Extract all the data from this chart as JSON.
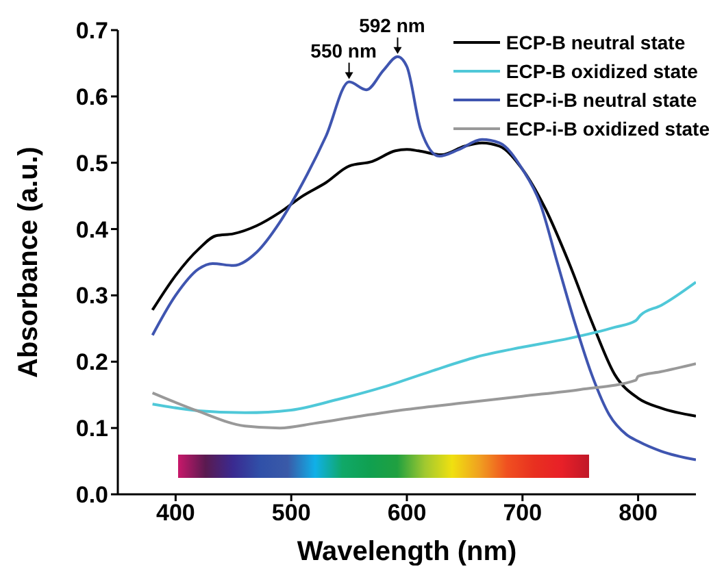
{
  "chart_data": {
    "type": "line",
    "xlabel": "Wavelength (nm)",
    "ylabel": "Absorbance (a.u.)",
    "xlim": [
      350,
      850
    ],
    "xticks": [
      400,
      500,
      600,
      700,
      800
    ],
    "ylim": [
      0,
      0.7
    ],
    "yticks": [
      {
        "value": 0,
        "label": "0.0"
      },
      0.1,
      0.2,
      0.3,
      0.4,
      0.5,
      0.6,
      0.7
    ],
    "legend": "top right",
    "marker": "none",
    "line_style": "solid",
    "annotations": [
      {
        "text": "550 nm",
        "x": 550,
        "y": 0.622
      },
      {
        "text": "592 nm",
        "x": 592,
        "y": 0.66
      }
    ],
    "series": [
      {
        "name": "ECP-B neutral state",
        "color": "#000000",
        "x": [
          380,
          400,
          420,
          435,
          450,
          470,
          490,
          510,
          530,
          550,
          570,
          590,
          600,
          610,
          630,
          650,
          665,
          680,
          700,
          720,
          740,
          760,
          780,
          800,
          820,
          850
        ],
        "values": [
          0.278,
          0.33,
          0.37,
          0.39,
          0.393,
          0.405,
          0.425,
          0.45,
          0.47,
          0.495,
          0.502,
          0.518,
          0.52,
          0.518,
          0.512,
          0.525,
          0.53,
          0.525,
          0.49,
          0.43,
          0.35,
          0.26,
          0.18,
          0.145,
          0.13,
          0.118
        ]
      },
      {
        "name": "ECP-B oxidized state",
        "color": "#4fc8d8",
        "x": [
          380,
          420,
          460,
          500,
          540,
          580,
          620,
          660,
          700,
          740,
          780,
          798,
          802,
          820,
          850
        ],
        "values": [
          0.136,
          0.126,
          0.123,
          0.127,
          0.143,
          0.162,
          0.185,
          0.207,
          0.222,
          0.235,
          0.252,
          0.262,
          0.27,
          0.285,
          0.32
        ]
      },
      {
        "name": "ECP-i-B neutral state",
        "color": "#3f55b0",
        "x": [
          380,
          400,
          420,
          432,
          450,
          470,
          490,
          510,
          530,
          550,
          565,
          580,
          592,
          600,
          612,
          628,
          645,
          665,
          680,
          700,
          715,
          730,
          745,
          760,
          775,
          790,
          800,
          820,
          850
        ],
        "values": [
          0.24,
          0.3,
          0.34,
          0.348,
          0.345,
          0.365,
          0.41,
          0.47,
          0.54,
          0.622,
          0.61,
          0.64,
          0.66,
          0.645,
          0.55,
          0.51,
          0.52,
          0.535,
          0.53,
          0.49,
          0.44,
          0.35,
          0.26,
          0.18,
          0.12,
          0.09,
          0.08,
          0.065,
          0.052
        ]
      },
      {
        "name": "ECP-i-B oxidized state",
        "color": "#999999",
        "x": [
          380,
          420,
          460,
          490,
          520,
          560,
          600,
          650,
          700,
          750,
          798,
          800,
          820,
          850
        ],
        "values": [
          0.153,
          0.125,
          0.103,
          0.1,
          0.107,
          0.118,
          0.128,
          0.138,
          0.148,
          0.158,
          0.172,
          0.178,
          0.185,
          0.197
        ]
      }
    ]
  }
}
